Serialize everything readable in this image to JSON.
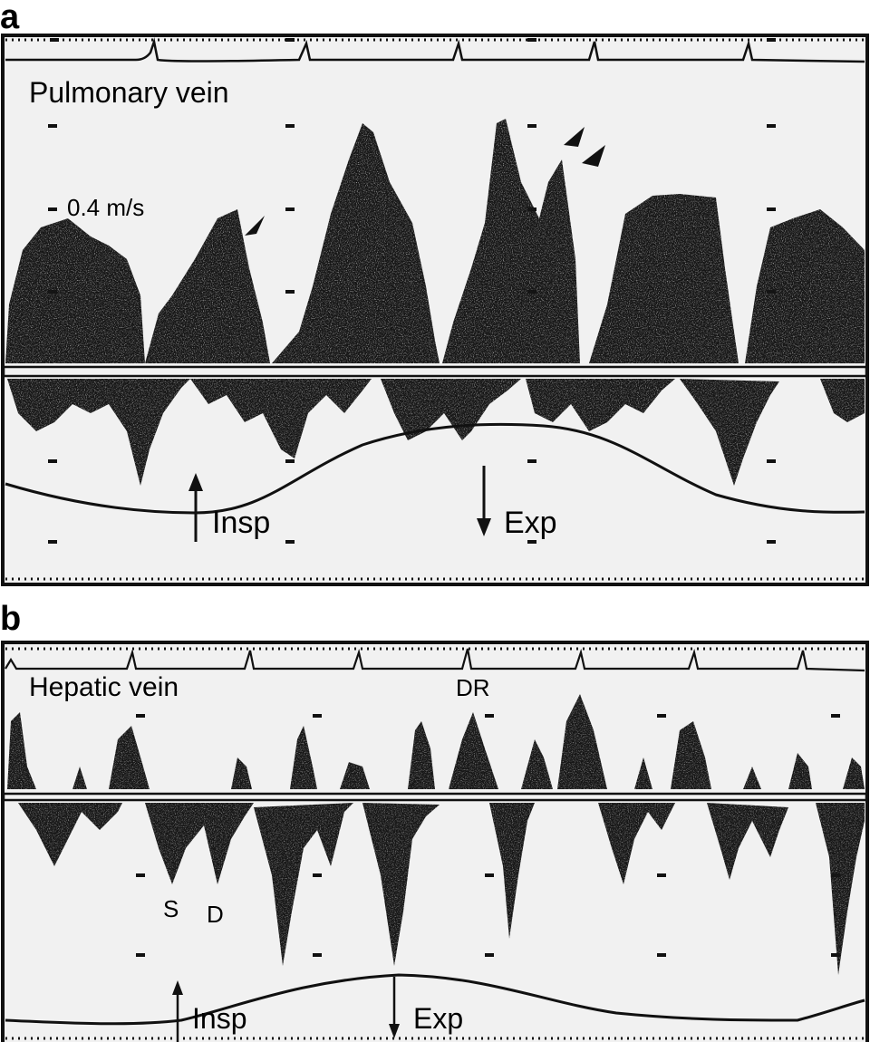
{
  "panel_a": {
    "letter": "a",
    "title": "Pulmonary vein",
    "scale": "0.4 m/s",
    "insp": "Insp",
    "exp": "Exp"
  },
  "panel_b": {
    "letter": "b",
    "title": "Hepatic vein",
    "dr": "DR",
    "s": "S",
    "d": "D",
    "insp": "Insp",
    "exp": "Exp"
  },
  "colors": {
    "paper": "#f2f2f2",
    "ink": "#111111",
    "background": "#ffffff"
  },
  "icons": [
    "arrowhead-marker",
    "inspiration-arrow",
    "expiration-arrow"
  ]
}
